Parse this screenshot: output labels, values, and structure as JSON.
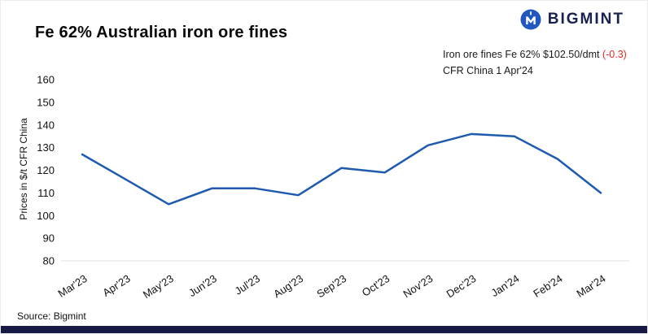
{
  "header": {
    "title": "Fe 62% Australian iron ore fines",
    "brand_name": "BIGMINT",
    "logo_icon": "bigmint-monogram-circle",
    "annotation": {
      "line1_prefix": "Iron ore fines Fe 62% $102.50/dmt ",
      "change": "(-0.3)",
      "line2": "CFR China 1 Apr'24"
    }
  },
  "chart_data": {
    "type": "line",
    "title": "Fe 62% Australian iron ore fines",
    "xlabel": "",
    "ylabel": "Prices in $/t CFR China",
    "categories": [
      "Mar'23",
      "Apr'23",
      "May'23",
      "Jun'23",
      "Jul'23",
      "Aug'23",
      "Sep'23",
      "Oct'23",
      "Nov'23",
      "Dec'23",
      "Jan'24",
      "Feb'24",
      "Mar'24"
    ],
    "values": [
      127,
      116,
      105,
      112,
      112,
      109,
      121,
      119,
      131,
      136,
      135,
      125,
      110
    ],
    "ylim": [
      80,
      160
    ],
    "yticks": [
      80,
      90,
      100,
      110,
      120,
      130,
      140,
      150,
      160
    ],
    "grid": false,
    "legend": false,
    "line_color": "#1e5bb0"
  },
  "footer": {
    "source": "Source: Bigmint"
  },
  "colors": {
    "accent_blue": "#1e5bb0",
    "brand_navy": "#18214f",
    "change_red": "#e8291f",
    "footer_bar": "#161a45"
  }
}
